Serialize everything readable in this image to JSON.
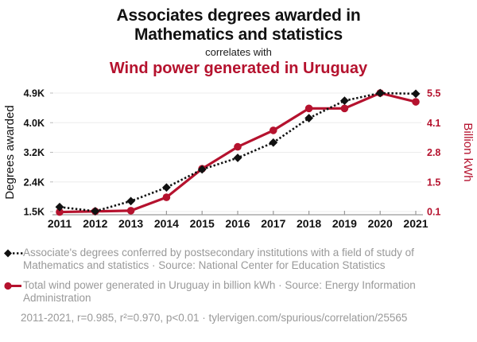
{
  "header": {
    "title": "Associates degrees awarded in Mathematics and statistics",
    "subtitle": "correlates with",
    "secondary_title": "Wind power generated in Uruguay"
  },
  "chart_data": {
    "type": "line",
    "x": [
      2011,
      2012,
      2013,
      2014,
      2015,
      2016,
      2017,
      2018,
      2019,
      2020,
      2021
    ],
    "grid": true,
    "legend_position": "bottom",
    "left_axis": {
      "label": "Degrees awarded",
      "tick_labels": [
        "1.5K",
        "2.4K",
        "3.2K",
        "4.0K",
        "4.9K"
      ],
      "range": [
        1500,
        4900
      ]
    },
    "right_axis": {
      "label": "Billion kWh",
      "tick_labels": [
        "0.1",
        "1.5",
        "2.8",
        "4.1",
        "5.5"
      ],
      "range": [
        0.1,
        5.5
      ]
    },
    "series": [
      {
        "name": "Associate's degrees conferred (Mathematics and statistics)",
        "axis": "left",
        "color": "#111111",
        "line_style": "dotted",
        "marker": "diamond",
        "values": [
          1630,
          1510,
          1800,
          2190,
          2710,
          3040,
          3480,
          4180,
          4680,
          4900,
          4880
        ]
      },
      {
        "name": "Total wind power generated in Uruguay (billion kWh)",
        "axis": "right",
        "color": "#b5122e",
        "line_style": "solid",
        "marker": "circle",
        "values": [
          0.08,
          0.11,
          0.14,
          0.75,
          2.05,
          3.05,
          3.8,
          4.8,
          4.8,
          5.5,
          5.1
        ]
      }
    ]
  },
  "legend": {
    "items": [
      {
        "marker": "diamond-dotted",
        "color": "#111111",
        "text": "Associate's degrees conferred by postsecondary institutions with a field of study of Mathematics and statistics · Source: National Center for Education Statistics"
      },
      {
        "marker": "circle-solid",
        "color": "#b5122e",
        "text": "Total wind power generated in Uruguay in billion kWh · Source: Energy Information Administration"
      }
    ]
  },
  "footer": {
    "text": "2011-2021, r=0.985, r²=0.970, p<0.01 · tylervigen.com/spurious/correlation/25565"
  },
  "colors": {
    "accent_red": "#b5122e",
    "text_black": "#111111",
    "muted_gray": "#999999",
    "gridline": "#ececec",
    "axis_line": "#999999"
  }
}
